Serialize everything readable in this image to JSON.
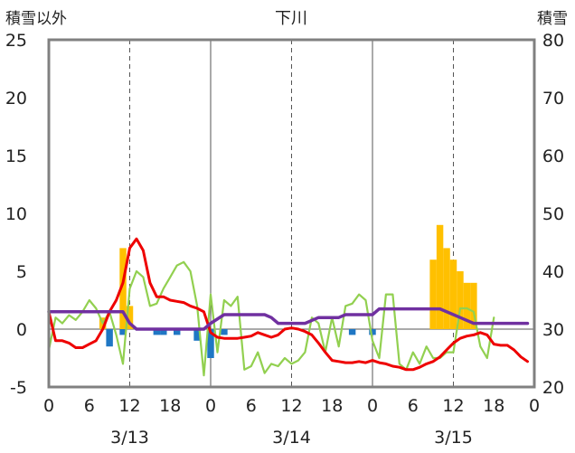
{
  "chart_data": {
    "type": "line",
    "title": "下川",
    "left_axis_label": "積雪以外",
    "right_axis_label": "積雪",
    "y_left": {
      "min": -5,
      "max": 25,
      "ticks": [
        "25",
        "20",
        "15",
        "10",
        "5",
        "0",
        "-5"
      ]
    },
    "y_right": {
      "min": 20,
      "max": 80,
      "ticks": [
        "80",
        "70",
        "60",
        "50",
        "40",
        "30",
        "20"
      ]
    },
    "x": {
      "min": 0,
      "max": 72,
      "tick_labels": [
        "0",
        "6",
        "12",
        "18",
        "0",
        "6",
        "12",
        "18",
        "0",
        "6",
        "12",
        "18",
        "0"
      ]
    },
    "date_labels": [
      "3/13",
      "3/14",
      "3/15"
    ],
    "grid": "dashed vertical at 12h, solid vertical at day boundaries, horizontal at 0",
    "colors": {
      "snowfall": "#FFC000",
      "precipitation": "#1F77C4",
      "temperature": "#EE0000",
      "wind": "#92D050",
      "snow_depth": "#7030A0",
      "frame": "#808080"
    },
    "snowfall_bars": [
      [
        8,
        1
      ],
      [
        11,
        7
      ],
      [
        12,
        2
      ],
      [
        57,
        6
      ],
      [
        58,
        9
      ],
      [
        59,
        7
      ],
      [
        60,
        6
      ],
      [
        61,
        5
      ],
      [
        62,
        4
      ],
      [
        63,
        4
      ]
    ],
    "precip_bars": [
      [
        9,
        -1.5
      ],
      [
        11,
        -0.5
      ],
      [
        16,
        -0.5
      ],
      [
        17,
        -0.5
      ],
      [
        19,
        -0.5
      ],
      [
        22,
        -1
      ],
      [
        24,
        -2.5
      ],
      [
        26,
        -0.5
      ],
      [
        45,
        -0.5
      ],
      [
        48,
        -0.5
      ]
    ],
    "temperature": [
      [
        0,
        1.5
      ],
      [
        1,
        -1
      ],
      [
        2,
        -1
      ],
      [
        3,
        -1.2
      ],
      [
        4,
        -1.6
      ],
      [
        5,
        -1.6
      ],
      [
        6,
        -1.3
      ],
      [
        7,
        -1
      ],
      [
        8,
        0
      ],
      [
        9,
        1.5
      ],
      [
        10,
        2.5
      ],
      [
        11,
        4
      ],
      [
        12,
        7
      ],
      [
        13,
        7.8
      ],
      [
        14,
        6.8
      ],
      [
        15,
        4
      ],
      [
        16,
        2.8
      ],
      [
        17,
        2.8
      ],
      [
        18,
        2.5
      ],
      [
        19,
        2.4
      ],
      [
        20,
        2.3
      ],
      [
        21,
        2
      ],
      [
        22,
        1.8
      ],
      [
        23,
        1.5
      ],
      [
        24,
        -0.3
      ],
      [
        25,
        -0.7
      ],
      [
        26,
        -0.8
      ],
      [
        27,
        -0.8
      ],
      [
        28,
        -0.8
      ],
      [
        29,
        -0.7
      ],
      [
        30,
        -0.6
      ],
      [
        31,
        -0.3
      ],
      [
        32,
        -0.5
      ],
      [
        33,
        -0.7
      ],
      [
        34,
        -0.5
      ],
      [
        35,
        0
      ],
      [
        36,
        0.1
      ],
      [
        37,
        0
      ],
      [
        38,
        -0.2
      ],
      [
        39,
        -0.5
      ],
      [
        40,
        -1.2
      ],
      [
        41,
        -2
      ],
      [
        42,
        -2.7
      ],
      [
        43,
        -2.8
      ],
      [
        44,
        -2.9
      ],
      [
        45,
        -2.9
      ],
      [
        46,
        -2.8
      ],
      [
        47,
        -2.9
      ],
      [
        48,
        -2.7
      ],
      [
        49,
        -2.9
      ],
      [
        50,
        -3
      ],
      [
        51,
        -3.2
      ],
      [
        52,
        -3.3
      ],
      [
        53,
        -3.5
      ],
      [
        54,
        -3.5
      ],
      [
        55,
        -3.3
      ],
      [
        56,
        -3
      ],
      [
        57,
        -2.8
      ],
      [
        58,
        -2.4
      ],
      [
        59,
        -1.8
      ],
      [
        60,
        -1.2
      ],
      [
        61,
        -0.8
      ],
      [
        62,
        -0.6
      ],
      [
        63,
        -0.5
      ],
      [
        64,
        -0.3
      ],
      [
        65,
        -0.5
      ],
      [
        66,
        -1.3
      ],
      [
        67,
        -1.4
      ],
      [
        68,
        -1.4
      ],
      [
        69,
        -1.8
      ],
      [
        70,
        -2.4
      ],
      [
        71,
        -2.8
      ]
    ],
    "wind": [
      [
        0,
        -1.8
      ],
      [
        1,
        1
      ],
      [
        2,
        0.5
      ],
      [
        3,
        1.2
      ],
      [
        4,
        0.8
      ],
      [
        5,
        1.5
      ],
      [
        6,
        2.5
      ],
      [
        7,
        1.8
      ],
      [
        8,
        0.5
      ],
      [
        9,
        1.5
      ],
      [
        10,
        -0.5
      ],
      [
        11,
        -3
      ],
      [
        12,
        3.5
      ],
      [
        13,
        5
      ],
      [
        14,
        4.5
      ],
      [
        15,
        2
      ],
      [
        16,
        2.2
      ],
      [
        17,
        3.5
      ],
      [
        18,
        4.5
      ],
      [
        19,
        5.5
      ],
      [
        20,
        5.8
      ],
      [
        21,
        5
      ],
      [
        22,
        2
      ],
      [
        23,
        -4
      ],
      [
        24,
        3
      ],
      [
        25,
        -2
      ],
      [
        26,
        2.5
      ],
      [
        27,
        2
      ],
      [
        28,
        2.8
      ],
      [
        29,
        -3.5
      ],
      [
        30,
        -3.2
      ],
      [
        31,
        -2
      ],
      [
        32,
        -3.8
      ],
      [
        33,
        -3
      ],
      [
        34,
        -3.2
      ],
      [
        35,
        -2.5
      ],
      [
        36,
        -3
      ],
      [
        37,
        -2.7
      ],
      [
        38,
        -2
      ],
      [
        39,
        1
      ],
      [
        40,
        0.5
      ],
      [
        41,
        -2
      ],
      [
        42,
        1
      ],
      [
        43,
        -1.5
      ],
      [
        44,
        2
      ],
      [
        45,
        2.2
      ],
      [
        46,
        3
      ],
      [
        47,
        2.5
      ],
      [
        48,
        -1
      ],
      [
        49,
        -2.5
      ],
      [
        50,
        3
      ],
      [
        51,
        3
      ],
      [
        52,
        -3
      ],
      [
        53,
        -3.5
      ],
      [
        54,
        -2
      ],
      [
        55,
        -3
      ],
      [
        56,
        -1.5
      ],
      [
        57,
        -2.5
      ],
      [
        58,
        -2.5
      ],
      [
        59,
        -2
      ],
      [
        60,
        -2
      ],
      [
        61,
        1.8
      ],
      [
        62,
        1.8
      ],
      [
        63,
        1.5
      ],
      [
        64,
        -1.5
      ],
      [
        65,
        -2.5
      ],
      [
        66,
        1
      ]
    ],
    "snow_depth": [
      [
        0,
        33
      ],
      [
        11,
        33
      ],
      [
        12,
        31
      ],
      [
        13,
        30
      ],
      [
        18,
        30
      ],
      [
        23,
        30
      ],
      [
        24,
        31
      ],
      [
        26,
        32.5
      ],
      [
        32,
        32.5
      ],
      [
        33,
        32
      ],
      [
        34,
        31
      ],
      [
        38,
        31
      ],
      [
        40,
        32
      ],
      [
        43,
        32
      ],
      [
        44,
        32.5
      ],
      [
        48,
        32.5
      ],
      [
        49,
        33.5
      ],
      [
        52,
        33.5
      ],
      [
        58,
        33.5
      ],
      [
        61,
        32
      ],
      [
        63,
        31
      ],
      [
        71,
        31
      ]
    ]
  }
}
